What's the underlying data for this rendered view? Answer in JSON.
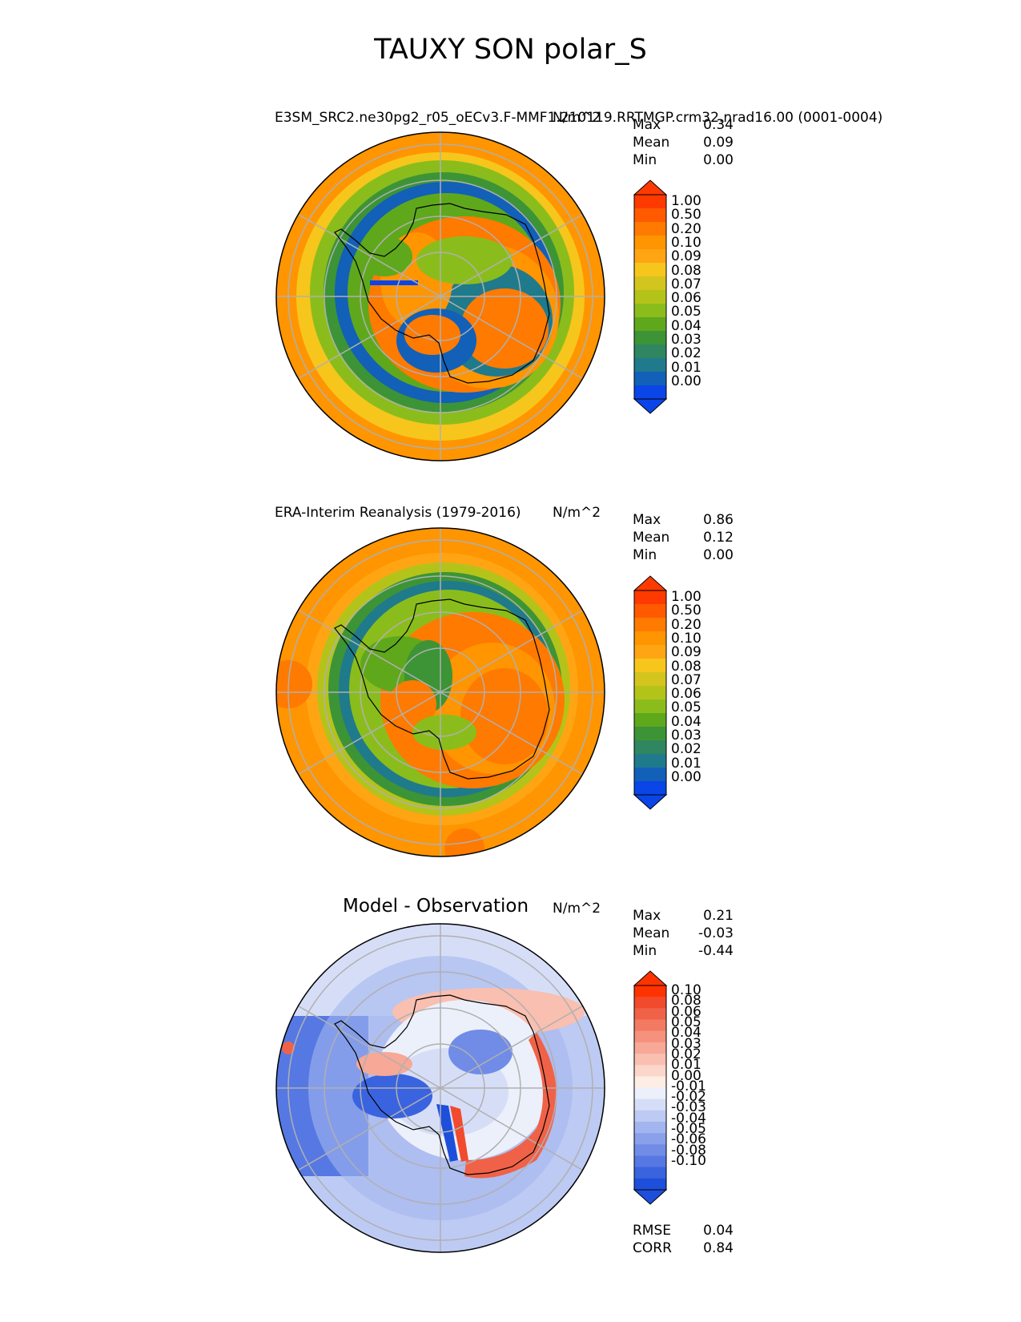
{
  "figure_title": "TAUXY SON polar_S",
  "chart_data": [
    {
      "type": "heatmap",
      "projection": "south polar stereographic",
      "title": "E3SM_SRC2.ne30pg2_r05_oECv3.F-MMF1.210119.RRTMGP.crm32.nrad16.00 (0001-0004)",
      "units": "N/m^2",
      "stats": {
        "max_label": "Max",
        "max": "0.34",
        "mean_label": "Mean",
        "mean": "0.09",
        "min_label": "Min",
        "min": "0.00"
      },
      "colorbar_ticks": [
        "1.00",
        "0.50",
        "0.20",
        "0.10",
        "0.09",
        "0.08",
        "0.07",
        "0.06",
        "0.05",
        "0.04",
        "0.03",
        "0.02",
        "0.01",
        "0.00"
      ],
      "colorbar_colors": [
        "#ff3a00",
        "#ff5a00",
        "#ff7a00",
        "#ff9500",
        "#ffa514",
        "#f6c61c",
        "#d4c41e",
        "#b4c31a",
        "#8abd1c",
        "#5fa81c",
        "#3c9436",
        "#2f8660",
        "#1f7a8c",
        "#1260b8",
        "#0a45e8"
      ]
    },
    {
      "type": "heatmap",
      "projection": "south polar stereographic",
      "title": "ERA-Interim Reanalysis (1979-2016)",
      "units": "N/m^2",
      "stats": {
        "max_label": "Max",
        "max": "0.86",
        "mean_label": "Mean",
        "mean": "0.12",
        "min_label": "Min",
        "min": "0.00"
      },
      "colorbar_ticks": [
        "1.00",
        "0.50",
        "0.20",
        "0.10",
        "0.09",
        "0.08",
        "0.07",
        "0.06",
        "0.05",
        "0.04",
        "0.03",
        "0.02",
        "0.01",
        "0.00"
      ],
      "colorbar_colors": [
        "#ff3a00",
        "#ff5a00",
        "#ff7a00",
        "#ff9500",
        "#ffa514",
        "#f6c61c",
        "#d4c41e",
        "#b4c31a",
        "#8abd1c",
        "#5fa81c",
        "#3c9436",
        "#2f8660",
        "#1f7a8c",
        "#1260b8",
        "#0a45e8"
      ]
    },
    {
      "type": "heatmap",
      "projection": "south polar stereographic",
      "title": "Model - Observation",
      "units": "N/m^2",
      "stats": {
        "max_label": "Max",
        "max": "0.21",
        "mean_label": "Mean",
        "mean": "-0.03",
        "min_label": "Min",
        "min": "-0.44"
      },
      "colorbar_ticks": [
        "0.10",
        "0.08",
        "0.06",
        "0.05",
        "0.04",
        "0.03",
        "0.02",
        "0.01",
        "0.00",
        "-0.01",
        "-0.02",
        "-0.03",
        "-0.04",
        "-0.05",
        "-0.06",
        "-0.08",
        "-0.10"
      ],
      "colorbar_colors": [
        "#ff3300",
        "#f24a2c",
        "#f06248",
        "#f37a62",
        "#f5917c",
        "#f7a896",
        "#f9bfb0",
        "#fbd6ca",
        "#fdede4",
        "#ecf0fb",
        "#d6def7",
        "#bdcaf3",
        "#a3b5ef",
        "#8aa0eb",
        "#708ce7",
        "#5678e3",
        "#3a63df",
        "#1e4fdb"
      ],
      "bottom_stats": {
        "rmse_label": "RMSE",
        "rmse": "0.04",
        "corr_label": "CORR",
        "corr": "0.84"
      }
    }
  ]
}
